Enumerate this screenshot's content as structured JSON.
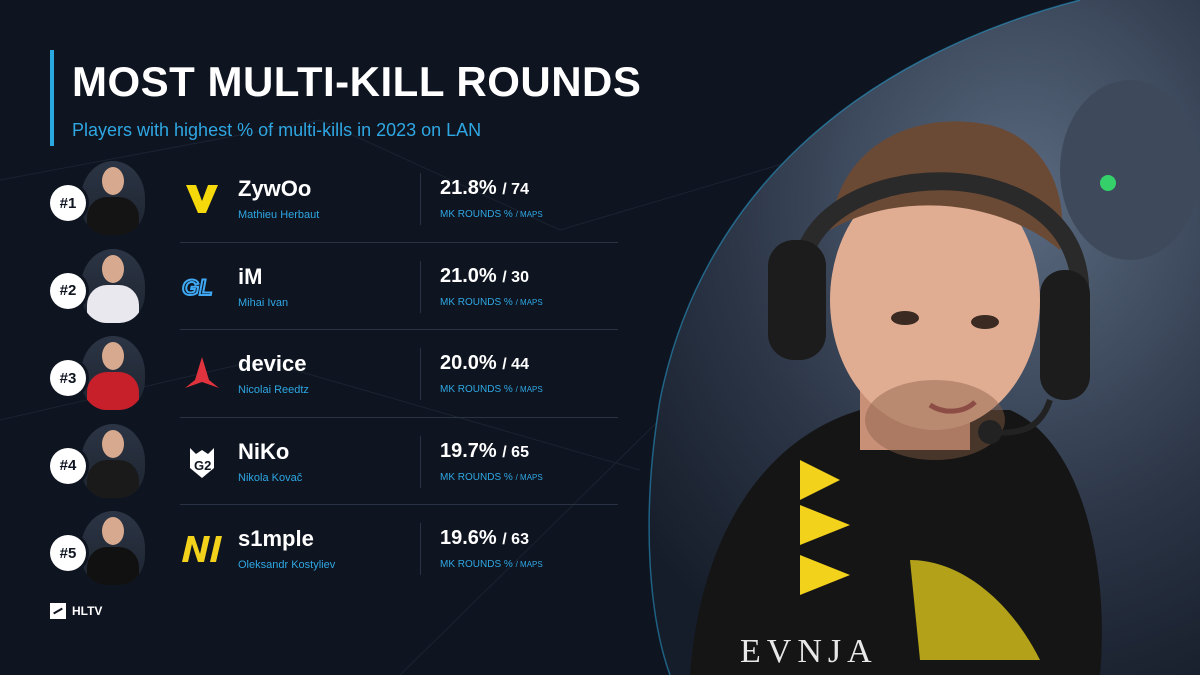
{
  "title": "MOST MULTI-KILL ROUNDS",
  "subtitle": "Players with highest % of multi-kills in 2023 on LAN",
  "stat_label_main": "MK ROUNDS %",
  "stat_label_sub": "/ MAPS",
  "colors": {
    "background": "#0e1420",
    "accent": "#2aa9e0",
    "text": "#ffffff"
  },
  "players": [
    {
      "rank": "#1",
      "nick": "ZywOo",
      "name": "Mathieu Herbaut",
      "pct": "21.8%",
      "maps": "/ 74",
      "team_icon": "vitality-logo-icon",
      "team_color": "#f5d90a",
      "shirt_color": "#111111"
    },
    {
      "rank": "#2",
      "nick": "iM",
      "name": "Mihai Ivan",
      "pct": "21.0%",
      "maps": "/ 30",
      "team_icon": "gl-logo-icon",
      "team_color": "#3fa9f5",
      "shirt_color": "#e8e8ee"
    },
    {
      "rank": "#3",
      "nick": "device",
      "name": "Nicolai Reedtz",
      "pct": "20.0%",
      "maps": "/ 44",
      "team_icon": "astralis-logo-icon",
      "team_color": "#e0333d",
      "shirt_color": "#c8202b"
    },
    {
      "rank": "#4",
      "nick": "NiKo",
      "name": "Nikola Kovač",
      "pct": "19.7%",
      "maps": "/ 65",
      "team_icon": "g2-logo-icon",
      "team_color": "#ffffff",
      "shirt_color": "#1a1a1a"
    },
    {
      "rank": "#5",
      "nick": "s1mple",
      "name": "Oleksandr Kostyliev",
      "pct": "19.6%",
      "maps": "/ 63",
      "team_icon": "navi-logo-icon",
      "team_color": "#f2d21b",
      "shirt_color": "#111111"
    }
  ],
  "brand": "HLTV"
}
